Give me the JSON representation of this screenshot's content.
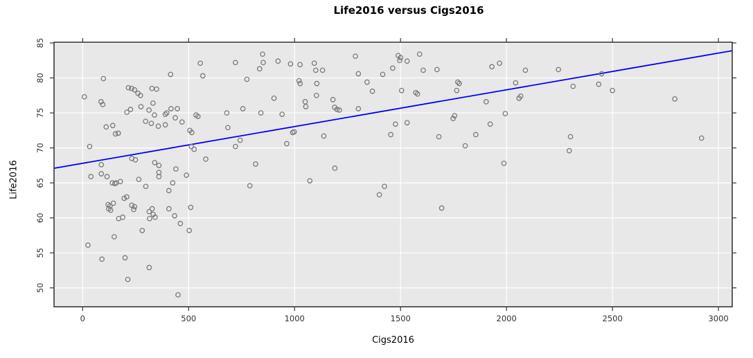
{
  "title": "Life2016 versus Cigs2016",
  "chart_data": {
    "type": "scatter",
    "title": "Life2016 versus Cigs2016",
    "xlabel": "Cigs2016",
    "ylabel": "Life2016",
    "xlim": [
      -135,
      3065
    ],
    "ylim": [
      47.3,
      85.1
    ],
    "x_ticks": [
      0,
      500,
      1000,
      1500,
      2000,
      2500,
      3000
    ],
    "y_ticks": [
      50,
      55,
      60,
      65,
      70,
      75,
      80,
      85
    ],
    "grid": true,
    "legend": "none",
    "panel_bg": "#e8e8e8",
    "grid_color": "#ffffff",
    "border_color": "#2b2b2b",
    "tick_color": "#333333",
    "tick_label_color": "#303030",
    "point_color": "#7a7a7a",
    "line_color": "#0000ff",
    "regression_line": {
      "intercept": 67.8,
      "slope": 0.00525,
      "x_start": -135,
      "x_end": 3065
    },
    "points": [
      [
        8,
        77.3
      ],
      [
        33,
        70.2
      ],
      [
        87,
        76.6
      ],
      [
        95,
        76.2
      ],
      [
        98,
        79.9
      ],
      [
        216,
        78.6
      ],
      [
        231,
        78.5
      ],
      [
        245,
        78.3
      ],
      [
        261,
        77.8
      ],
      [
        273,
        77.5
      ],
      [
        327,
        78.5
      ],
      [
        349,
        78.4
      ],
      [
        415,
        80.5
      ],
      [
        567,
        80.3
      ],
      [
        555,
        82.1
      ],
      [
        332,
        76.4
      ],
      [
        209,
        75.1
      ],
      [
        226,
        75.5
      ],
      [
        275,
        75.9
      ],
      [
        313,
        75.4
      ],
      [
        339,
        74.7
      ],
      [
        390,
        74.8
      ],
      [
        397,
        75.0
      ],
      [
        417,
        75.6
      ],
      [
        447,
        75.6
      ],
      [
        297,
        73.8
      ],
      [
        324,
        73.5
      ],
      [
        357,
        73.1
      ],
      [
        390,
        73.3
      ],
      [
        437,
        74.3
      ],
      [
        469,
        73.7
      ],
      [
        111,
        73.0
      ],
      [
        142,
        73.2
      ],
      [
        155,
        72.0
      ],
      [
        168,
        72.1
      ],
      [
        506,
        72.5
      ],
      [
        515,
        72.2
      ],
      [
        535,
        74.7
      ],
      [
        544,
        74.5
      ],
      [
        680,
        75.0
      ],
      [
        685,
        72.9
      ],
      [
        513,
        70.2
      ],
      [
        526,
        69.8
      ],
      [
        581,
        68.4
      ],
      [
        232,
        68.5
      ],
      [
        249,
        68.3
      ],
      [
        340,
        67.9
      ],
      [
        360,
        67.5
      ],
      [
        88,
        67.6
      ],
      [
        88,
        66.3
      ],
      [
        115,
        65.9
      ],
      [
        440,
        67.0
      ],
      [
        360,
        66.5
      ],
      [
        360,
        65.9
      ],
      [
        490,
        66.1
      ],
      [
        425,
        65.0
      ],
      [
        407,
        63.9
      ],
      [
        265,
        65.5
      ],
      [
        298,
        64.5
      ],
      [
        140,
        65.0
      ],
      [
        152,
        64.9
      ],
      [
        158,
        65.0
      ],
      [
        178,
        65.2
      ],
      [
        39,
        65.9
      ],
      [
        196,
        62.8
      ],
      [
        208,
        63.0
      ],
      [
        232,
        61.8
      ],
      [
        245,
        61.6
      ],
      [
        241,
        61.2
      ],
      [
        120,
        61.9
      ],
      [
        129,
        61.7
      ],
      [
        123,
        61.3
      ],
      [
        132,
        61.1
      ],
      [
        145,
        62.1
      ],
      [
        170,
        59.9
      ],
      [
        189,
        60.1
      ],
      [
        314,
        60.9
      ],
      [
        328,
        61.3
      ],
      [
        333,
        60.5
      ],
      [
        342,
        60.1
      ],
      [
        316,
        59.9
      ],
      [
        407,
        61.3
      ],
      [
        434,
        60.3
      ],
      [
        461,
        59.2
      ],
      [
        503,
        58.2
      ],
      [
        510,
        61.5
      ],
      [
        281,
        58.2
      ],
      [
        149,
        57.3
      ],
      [
        25,
        56.1
      ],
      [
        91,
        54.1
      ],
      [
        200,
        54.3
      ],
      [
        314,
        52.9
      ],
      [
        213,
        51.2
      ],
      [
        450,
        49.0
      ],
      [
        721,
        82.2
      ],
      [
        849,
        83.4
      ],
      [
        852,
        82.2
      ],
      [
        835,
        81.3
      ],
      [
        922,
        82.4
      ],
      [
        775,
        79.8
      ],
      [
        981,
        82.0
      ],
      [
        1026,
        81.9
      ],
      [
        1093,
        82.1
      ],
      [
        1100,
        81.1
      ],
      [
        1132,
        81.1
      ],
      [
        1021,
        79.6
      ],
      [
        1026,
        79.2
      ],
      [
        1105,
        79.2
      ],
      [
        1287,
        83.1
      ],
      [
        1301,
        80.6
      ],
      [
        1342,
        79.4
      ],
      [
        1416,
        80.5
      ],
      [
        1463,
        81.4
      ],
      [
        1489,
        83.2
      ],
      [
        1500,
        82.9
      ],
      [
        1496,
        82.5
      ],
      [
        1531,
        82.4
      ],
      [
        1367,
        78.1
      ],
      [
        1505,
        78.2
      ],
      [
        903,
        77.1
      ],
      [
        756,
        75.6
      ],
      [
        841,
        75.0
      ],
      [
        941,
        74.8
      ],
      [
        1050,
        76.6
      ],
      [
        1053,
        75.9
      ],
      [
        1103,
        77.5
      ],
      [
        1181,
        76.9
      ],
      [
        1189,
        75.8
      ],
      [
        1200,
        75.5
      ],
      [
        1211,
        75.4
      ],
      [
        1301,
        75.6
      ],
      [
        1476,
        73.4
      ],
      [
        1531,
        73.6
      ],
      [
        1454,
        71.9
      ],
      [
        991,
        72.2
      ],
      [
        998,
        72.3
      ],
      [
        963,
        70.6
      ],
      [
        1138,
        71.7
      ],
      [
        743,
        71.1
      ],
      [
        721,
        70.2
      ],
      [
        816,
        67.7
      ],
      [
        1190,
        67.1
      ],
      [
        789,
        64.6
      ],
      [
        1072,
        65.3
      ],
      [
        1424,
        64.5
      ],
      [
        1400,
        63.3
      ],
      [
        1590,
        83.4
      ],
      [
        1607,
        81.1
      ],
      [
        1672,
        81.2
      ],
      [
        1931,
        81.6
      ],
      [
        1967,
        82.1
      ],
      [
        2089,
        81.1
      ],
      [
        2245,
        81.2
      ],
      [
        1770,
        79.4
      ],
      [
        1777,
        79.2
      ],
      [
        1765,
        78.2
      ],
      [
        1572,
        77.9
      ],
      [
        1580,
        77.7
      ],
      [
        2043,
        79.3
      ],
      [
        2314,
        78.8
      ],
      [
        2059,
        77.1
      ],
      [
        2067,
        77.4
      ],
      [
        1904,
        76.6
      ],
      [
        1994,
        74.9
      ],
      [
        1755,
        74.6
      ],
      [
        1748,
        74.2
      ],
      [
        1923,
        73.4
      ],
      [
        1855,
        71.9
      ],
      [
        1681,
        71.6
      ],
      [
        1805,
        70.3
      ],
      [
        2302,
        71.6
      ],
      [
        2296,
        69.6
      ],
      [
        1988,
        67.8
      ],
      [
        1694,
        61.4
      ],
      [
        2449,
        80.6
      ],
      [
        2435,
        79.1
      ],
      [
        2500,
        78.2
      ],
      [
        2794,
        77.0
      ],
      [
        2920,
        71.4
      ]
    ]
  }
}
